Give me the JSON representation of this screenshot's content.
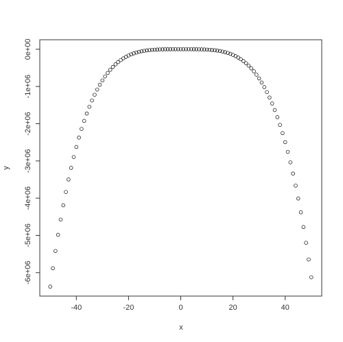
{
  "chart_data": {
    "type": "scatter",
    "x_label": "x",
    "y_label": "y",
    "x": [
      -50,
      -49,
      -48,
      -47,
      -46,
      -45,
      -44,
      -43,
      -42,
      -41,
      -40,
      -39,
      -38,
      -37,
      -36,
      -35,
      -34,
      -33,
      -32,
      -31,
      -30,
      -29,
      -28,
      -27,
      -26,
      -25,
      -24,
      -23,
      -22,
      -21,
      -20,
      -19,
      -18,
      -17,
      -16,
      -15,
      -14,
      -13,
      -12,
      -11,
      -10,
      -9,
      -8,
      -7,
      -6,
      -5,
      -4,
      -3,
      -2,
      -1,
      0,
      1,
      2,
      3,
      4,
      5,
      6,
      7,
      8,
      9,
      10,
      11,
      12,
      13,
      14,
      15,
      16,
      17,
      18,
      19,
      20,
      21,
      22,
      23,
      24,
      25,
      26,
      27,
      28,
      29,
      30,
      31,
      32,
      33,
      34,
      35,
      36,
      37,
      38,
      39,
      40,
      41,
      42,
      43,
      44,
      45,
      46,
      47,
      48,
      49,
      50
    ],
    "values": [
      -6375000,
      -5882450,
      -5419008,
      -4983504,
      -4574792,
      -4191750,
      -3833280,
      -3498308,
      -3185784,
      -2894682,
      -2624000,
      -2372760,
      -2140008,
      -1924814,
      -1726272,
      -1543500,
      -1375640,
      -1221858,
      -1081344,
      -953312,
      -837000,
      -731670,
      -636608,
      -551124,
      -474552,
      -406250,
      -345600,
      -292008,
      -244904,
      -203742,
      -168000,
      -137180,
      -110808,
      -88434,
      -69632,
      -54000,
      -41160,
      -30758,
      -22464,
      -15972,
      -11000,
      -7290,
      -4608,
      -2744,
      -1512,
      -750,
      -320,
      -108,
      -24,
      -2,
      0,
      0,
      -8,
      -54,
      -192,
      -500,
      -1080,
      -2058,
      -3584,
      -5832,
      -9000,
      -13310,
      -19008,
      -26364,
      -35672,
      -47250,
      -61440,
      -78608,
      -99144,
      -123462,
      -152000,
      -185220,
      -223608,
      -267674,
      -317952,
      -375000,
      -439400,
      -511758,
      -592704,
      -682892,
      -783000,
      -893730,
      -1015808,
      -1149984,
      -1297032,
      -1457750,
      -1632960,
      -1823508,
      -2030264,
      -2254122,
      -2496000,
      -2756840,
      -3037608,
      -3339294,
      -3662912,
      -4009500,
      -4380120,
      -4775858,
      -5197824,
      -5647152,
      -6125000
    ],
    "color": "#000000",
    "xlim": [
      -54,
      54
    ],
    "ylim": [
      -6630000,
      255000
    ],
    "xticks": [
      -40,
      -20,
      0,
      20,
      40
    ],
    "yticks": [
      {
        "value": 0,
        "label": "0e+00"
      },
      {
        "value": -1000000,
        "label": "-1e+06"
      },
      {
        "value": -2000000,
        "label": "-2e+06"
      },
      {
        "value": -3000000,
        "label": "-3e+06"
      },
      {
        "value": -4000000,
        "label": "-4e+06"
      },
      {
        "value": -5000000,
        "label": "-5e+06"
      },
      {
        "value": -6000000,
        "label": "-6e+06"
      }
    ]
  }
}
